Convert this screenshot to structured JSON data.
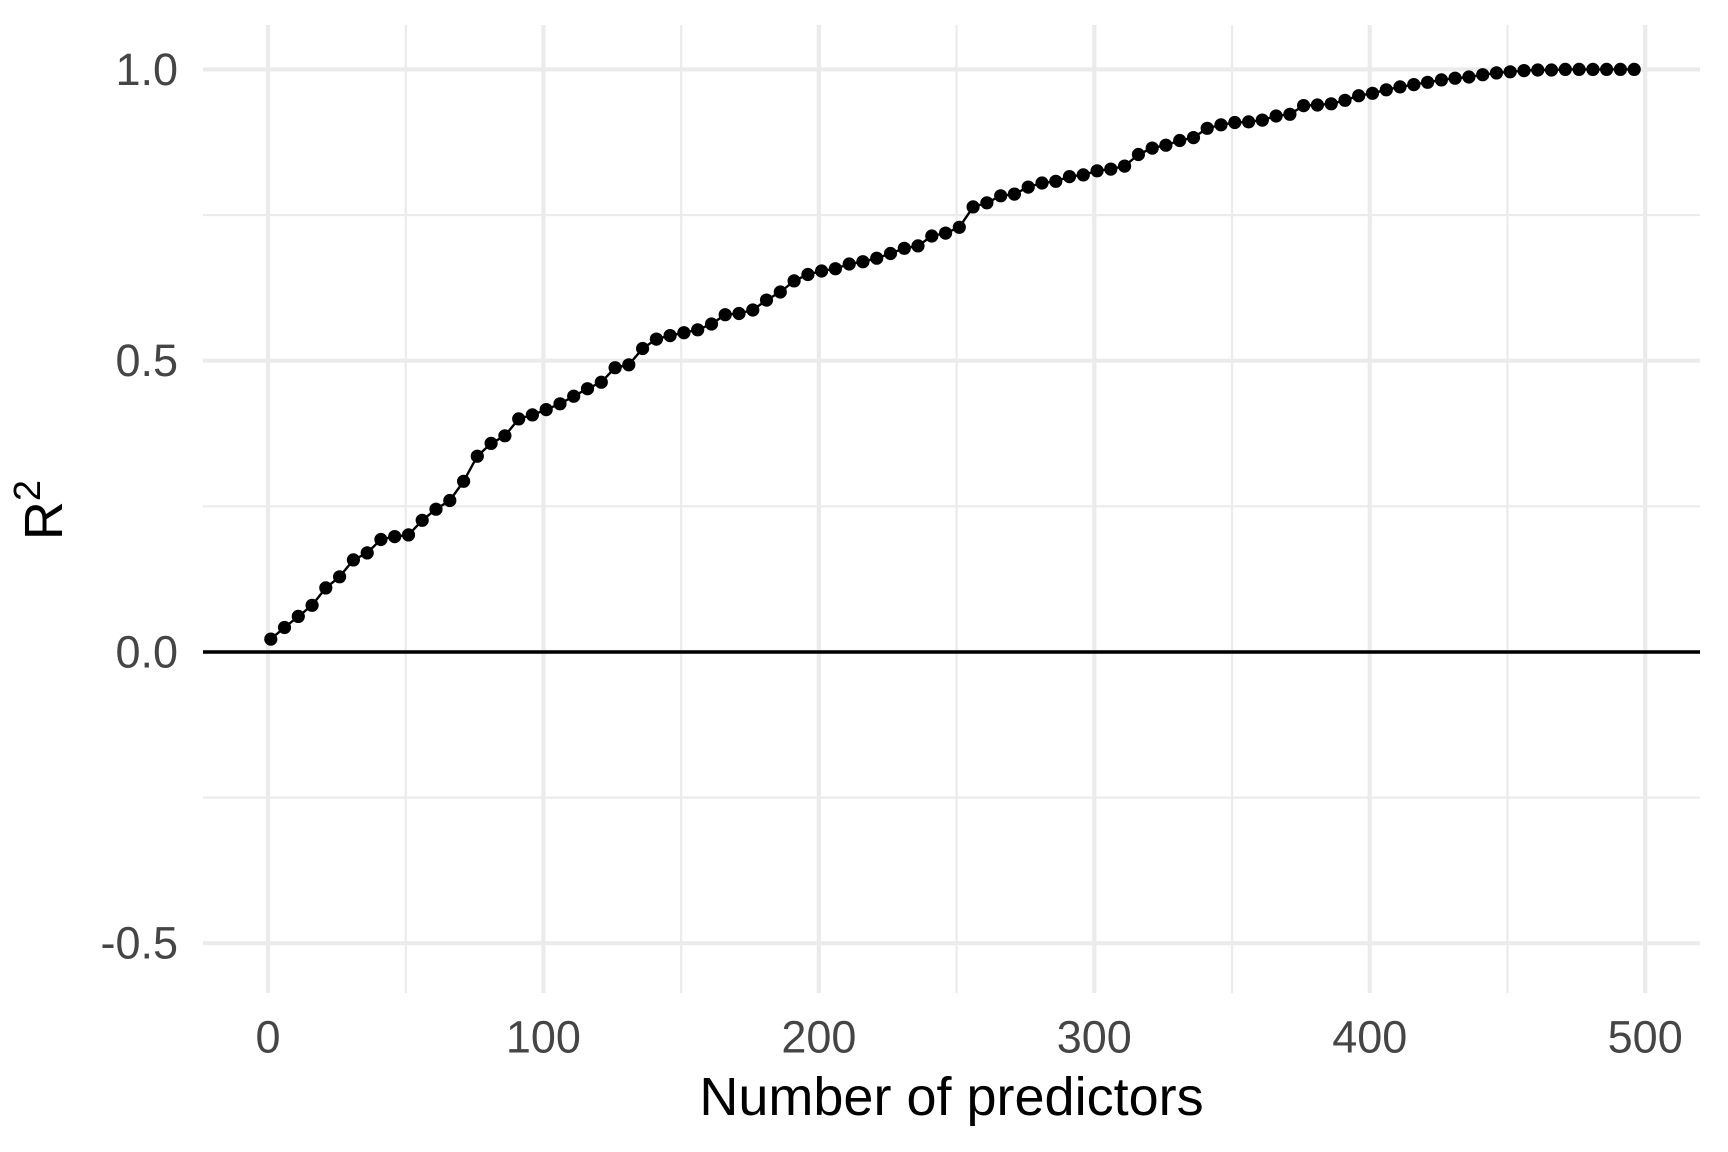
{
  "figure": {
    "title": "",
    "background_color": "#FFFFFF"
  },
  "chart_data": {
    "type": "line",
    "title": "",
    "xlabel": "Number of predictors",
    "ylabel": "R²",
    "ylabel_base": "R",
    "ylabel_exponent": "2",
    "legend": "none",
    "grid": "major+minor",
    "marker": "filled-circle",
    "xlim": [
      -23.6,
      519.9
    ],
    "ylim": [
      -0.5855,
      1.0763
    ],
    "x_ticks": [
      0,
      100,
      200,
      300,
      400,
      500
    ],
    "x_tick_labels": [
      "0",
      "100",
      "200",
      "300",
      "400",
      "500"
    ],
    "y_ticks": [
      -0.5,
      0.0,
      0.5,
      1.0
    ],
    "y_tick_labels": [
      "-0.5",
      "0.0",
      "0.5",
      "1.0"
    ],
    "x_minor_ticks": [
      50,
      150,
      250,
      350,
      450
    ],
    "y_minor_ticks": [
      -0.25,
      0.25,
      0.75
    ],
    "hline_y": 0,
    "colors": {
      "series": "#000000",
      "hline": "#000000",
      "grid_major": "#EBEBEB",
      "grid_minor": "#EBEBEB",
      "axis_text": "#454545",
      "axis_title": "#000000",
      "background": "#FFFFFF"
    },
    "x": [
      1,
      6,
      11,
      16,
      21,
      26,
      31,
      36,
      41,
      46,
      51,
      56,
      61,
      66,
      71,
      76,
      81,
      86,
      91,
      96,
      101,
      106,
      111,
      116,
      121,
      126,
      131,
      136,
      141,
      146,
      151,
      156,
      161,
      166,
      171,
      176,
      181,
      186,
      191,
      196,
      201,
      206,
      211,
      216,
      221,
      226,
      231,
      236,
      241,
      246,
      251,
      256,
      261,
      266,
      271,
      276,
      281,
      286,
      291,
      296,
      301,
      306,
      311,
      316,
      321,
      326,
      331,
      336,
      341,
      346,
      351,
      356,
      361,
      366,
      371,
      376,
      381,
      386,
      391,
      396,
      401,
      406,
      411,
      416,
      421,
      426,
      431,
      436,
      441,
      446,
      451,
      456,
      461,
      466,
      471,
      476,
      481,
      486,
      491,
      496
    ],
    "y": [
      0.022,
      0.042,
      0.061,
      0.08,
      0.11,
      0.129,
      0.158,
      0.17,
      0.193,
      0.198,
      0.201,
      0.226,
      0.245,
      0.26,
      0.293,
      0.336,
      0.358,
      0.371,
      0.4,
      0.407,
      0.416,
      0.426,
      0.439,
      0.452,
      0.463,
      0.488,
      0.493,
      0.521,
      0.537,
      0.543,
      0.548,
      0.553,
      0.563,
      0.579,
      0.581,
      0.587,
      0.604,
      0.618,
      0.637,
      0.648,
      0.654,
      0.658,
      0.666,
      0.67,
      0.676,
      0.684,
      0.693,
      0.697,
      0.714,
      0.719,
      0.729,
      0.764,
      0.771,
      0.783,
      0.786,
      0.798,
      0.805,
      0.808,
      0.816,
      0.819,
      0.826,
      0.829,
      0.834,
      0.854,
      0.865,
      0.87,
      0.878,
      0.883,
      0.899,
      0.905,
      0.909,
      0.91,
      0.913,
      0.92,
      0.923,
      0.938,
      0.939,
      0.941,
      0.947,
      0.955,
      0.959,
      0.965,
      0.97,
      0.974,
      0.978,
      0.982,
      0.985,
      0.987,
      0.991,
      0.994,
      0.996,
      0.998,
      0.999,
      0.999,
      1.0,
      1.0,
      1.0,
      1.0,
      1.0,
      1.0
    ]
  }
}
